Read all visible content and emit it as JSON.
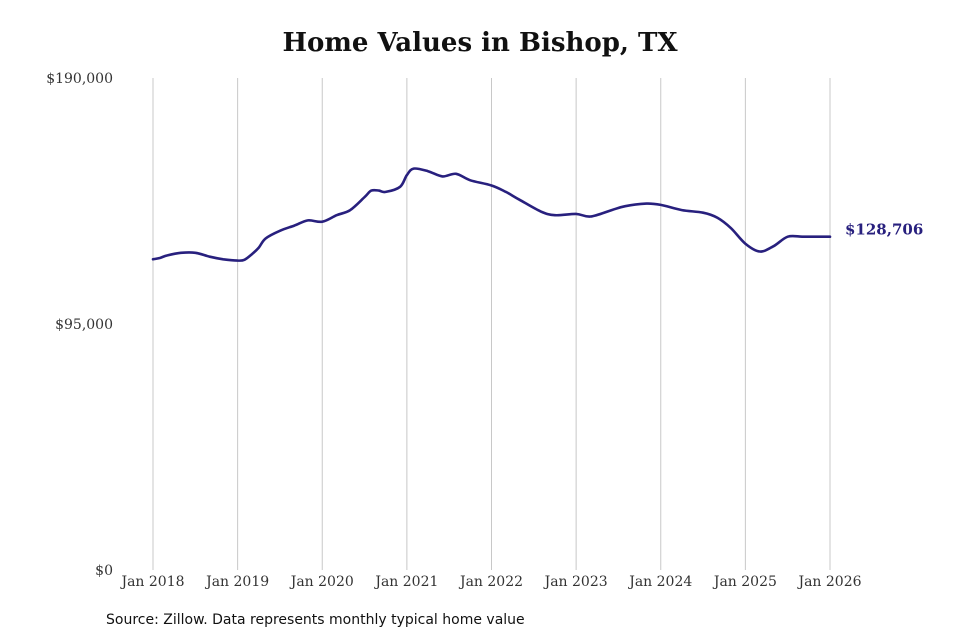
{
  "chart_data": {
    "type": "line",
    "title": "Home Values in Bishop, TX",
    "xlabel": "",
    "ylabel": "",
    "ylim": [
      0,
      190000
    ],
    "y_ticks": [
      "$0",
      "$95,000",
      "$190,000"
    ],
    "y_tick_values": [
      0,
      95000,
      190000
    ],
    "x_ticks": [
      "Jan 2018",
      "Jan 2019",
      "Jan 2020",
      "Jan 2021",
      "Jan 2022",
      "Jan 2023",
      "Jan 2024",
      "Jan 2025",
      "Jan 2026"
    ],
    "x_tick_values": [
      2018,
      2019,
      2020,
      2021,
      2022,
      2023,
      2024,
      2025,
      2026
    ],
    "xlim": [
      2018,
      2026
    ],
    "grid": "vertical",
    "line_color": "#28207e",
    "series": [
      {
        "x": [
          2018.0,
          2018.08,
          2018.17,
          2018.33,
          2018.5,
          2018.67,
          2018.83,
          2019.0,
          2019.08,
          2019.17,
          2019.25,
          2019.33,
          2019.5,
          2019.67,
          2019.83,
          2020.0,
          2020.17,
          2020.33,
          2020.5,
          2020.58,
          2020.67,
          2020.75,
          2020.92,
          2021.0,
          2021.08,
          2021.25,
          2021.42,
          2021.58,
          2021.75,
          2022.0,
          2022.17,
          2022.33,
          2022.58,
          2022.75,
          2023.0,
          2023.17,
          2023.42,
          2023.58,
          2023.83,
          2024.0,
          2024.25,
          2024.5,
          2024.67,
          2024.83,
          2025.0,
          2025.17,
          2025.33,
          2025.5,
          2025.67,
          2025.83,
          2026.0
        ],
        "values": [
          120000,
          120500,
          121500,
          122500,
          122500,
          121000,
          120000,
          119500,
          119800,
          122000,
          124500,
          128000,
          131000,
          133000,
          135000,
          134500,
          137000,
          139000,
          144000,
          146500,
          146500,
          146000,
          148000,
          152500,
          155000,
          154000,
          152000,
          153000,
          150500,
          148500,
          146000,
          143000,
          138500,
          137000,
          137500,
          136500,
          139000,
          140500,
          141500,
          141000,
          139000,
          138000,
          136000,
          132000,
          126000,
          123000,
          125000,
          128706,
          128706,
          128706,
          128706
        ],
        "end_label": "$128,706"
      }
    ],
    "source": "Source: Zillow. Data represents monthly typical home value"
  }
}
